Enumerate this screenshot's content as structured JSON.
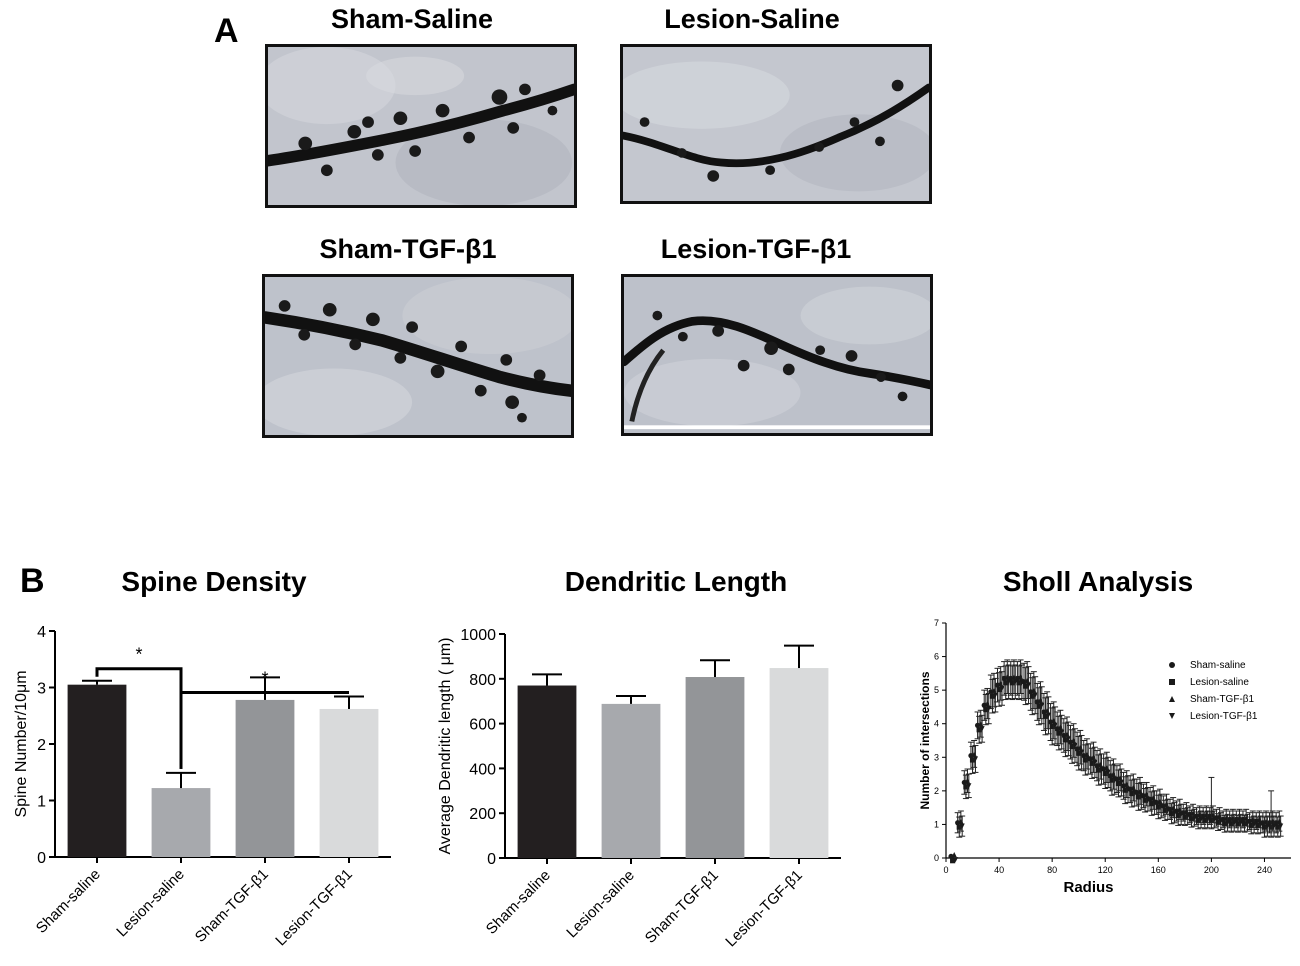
{
  "panel_a": {
    "letter": "A",
    "images": [
      {
        "title": "Sham-Saline"
      },
      {
        "title": "Lesion-Saline"
      },
      {
        "title": "Sham-TGF-β1"
      },
      {
        "title": "Lesion-TGF-β1"
      }
    ]
  },
  "panel_b": {
    "letter": "B"
  },
  "colors": {
    "sham_saline": "#231f20",
    "lesion_saline": "#a7a9ad",
    "sham_tgf": "#939598",
    "lesion_tgf": "#d9dadb"
  },
  "chart_data": [
    {
      "type": "bar",
      "title": "Spine Density",
      "xlabel": "",
      "ylabel": "Spine Number/10μm",
      "categories": [
        "Sham-saline",
        "Lesion-saline",
        "Sham-TGF-β1",
        "Lesion-TGF-β1"
      ],
      "values": [
        3.05,
        1.22,
        2.78,
        2.62
      ],
      "errors": [
        0.07,
        0.27,
        0.4,
        0.22
      ],
      "ylim": [
        0,
        4
      ],
      "yticks": [
        0,
        1,
        2,
        3,
        4
      ],
      "significance": [
        {
          "pair": [
            0,
            1
          ],
          "label": "*"
        },
        {
          "pair": [
            1,
            3
          ],
          "label": "*"
        }
      ]
    },
    {
      "type": "bar",
      "title": "Dendritic Length",
      "xlabel": "",
      "ylabel": "Average Dendritic length ( μm)",
      "categories": [
        "Sham-saline",
        "Lesion-saline",
        "Sham-TGF-β1",
        "Lesion-TGF-β1"
      ],
      "values": [
        770,
        688,
        808,
        848
      ],
      "errors": [
        50,
        35,
        75,
        100
      ],
      "ylim": [
        0,
        1000
      ],
      "yticks": [
        0,
        200,
        400,
        600,
        800,
        1000
      ]
    },
    {
      "type": "scatter",
      "title": "Sholl Analysis",
      "xlabel": "Radius",
      "ylabel": "Number of intersections",
      "xlim": [
        0,
        260
      ],
      "ylim": [
        0,
        7
      ],
      "xticks": [
        0,
        40,
        80,
        120,
        160,
        200,
        240
      ],
      "yticks": [
        0,
        1,
        2,
        3,
        4,
        5,
        6,
        7
      ],
      "legend_position": "right",
      "series": [
        {
          "name": "Sham-saline",
          "marker": "circle"
        },
        {
          "name": "Lesion-saline",
          "marker": "square"
        },
        {
          "name": "Sham-TGF-β1",
          "marker": "triangle-up"
        },
        {
          "name": "Lesion-TGF-β1",
          "marker": "triangle-down"
        }
      ],
      "x": [
        5,
        10,
        15,
        20,
        25,
        30,
        35,
        40,
        45,
        50,
        55,
        60,
        65,
        70,
        75,
        80,
        85,
        90,
        95,
        100,
        105,
        110,
        115,
        120,
        125,
        130,
        135,
        140,
        145,
        150,
        155,
        160,
        165,
        170,
        175,
        180,
        185,
        190,
        195,
        200,
        205,
        210,
        215,
        220,
        225,
        230,
        235,
        240,
        245,
        250
      ],
      "y": [
        0.0,
        1.0,
        2.2,
        3.0,
        3.9,
        4.5,
        4.9,
        5.1,
        5.3,
        5.3,
        5.3,
        5.2,
        4.9,
        4.6,
        4.3,
        4.0,
        3.8,
        3.6,
        3.4,
        3.2,
        3.0,
        2.9,
        2.7,
        2.6,
        2.4,
        2.3,
        2.1,
        2.0,
        1.9,
        1.8,
        1.7,
        1.6,
        1.5,
        1.4,
        1.35,
        1.3,
        1.25,
        1.2,
        1.2,
        1.2,
        1.15,
        1.1,
        1.1,
        1.1,
        1.1,
        1.05,
        1.05,
        1.0,
        1.0,
        1.0
      ],
      "err": [
        0.05,
        0.3,
        0.35,
        0.4,
        0.4,
        0.45,
        0.5,
        0.5,
        0.5,
        0.5,
        0.5,
        0.55,
        0.55,
        0.55,
        0.55,
        0.55,
        0.5,
        0.5,
        0.5,
        0.5,
        0.45,
        0.45,
        0.45,
        0.45,
        0.45,
        0.4,
        0.4,
        0.4,
        0.4,
        0.35,
        0.35,
        0.35,
        0.3,
        0.3,
        0.3,
        0.25,
        0.25,
        0.25,
        0.25,
        0.25,
        0.25,
        0.25,
        0.25,
        0.25,
        0.25,
        0.25,
        0.25,
        0.3,
        0.3,
        0.3
      ]
    }
  ]
}
